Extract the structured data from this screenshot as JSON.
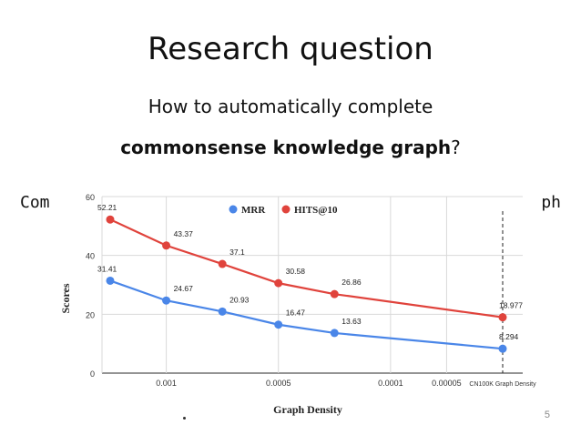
{
  "slide": {
    "title": "Research question",
    "question_line1": "How to automatically complete",
    "question_bold": "commonsense knowledge graph",
    "question_end": "?",
    "side_left": "Com",
    "side_right": "ph",
    "page_number": "5"
  },
  "chart_data": {
    "type": "line",
    "categories": [
      "",
      "0.001",
      "",
      "0.0005",
      "",
      "0.0001",
      "0.00005",
      "CN100K Graph Density"
    ],
    "xlabel": "Graph Density",
    "ylabel": "Scores",
    "ylim": [
      0,
      60
    ],
    "yticks": [
      0,
      20,
      40,
      60
    ],
    "grid": true,
    "legend": "top-center",
    "reference_line": "CN100K Graph Density",
    "series": [
      {
        "name": "MRR",
        "color": "#4a86e8",
        "points": [
          {
            "x": 0,
            "y": 31.41,
            "label": "31.41"
          },
          {
            "x": 1,
            "y": 24.67,
            "label": "24.67"
          },
          {
            "x": 2,
            "y": 20.93,
            "label": "20.93"
          },
          {
            "x": 3,
            "y": 16.47,
            "label": "16.47"
          },
          {
            "x": 4,
            "y": 13.63,
            "label": "13.63"
          },
          {
            "x": 7,
            "y": 8.294,
            "label": "8.294"
          }
        ]
      },
      {
        "name": "HITS@10",
        "color": "#e0433c",
        "points": [
          {
            "x": 0,
            "y": 52.21,
            "label": "52.21"
          },
          {
            "x": 1,
            "y": 43.37,
            "label": "43.37"
          },
          {
            "x": 2,
            "y": 37.1,
            "label": "37.1"
          },
          {
            "x": 3,
            "y": 30.58,
            "label": "30.58"
          },
          {
            "x": 4,
            "y": 26.86,
            "label": "26.86"
          },
          {
            "x": 7,
            "y": 18.977,
            "label": "18.977"
          }
        ]
      }
    ]
  }
}
